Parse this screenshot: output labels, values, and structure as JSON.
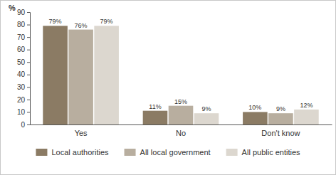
{
  "chart_data": {
    "type": "bar",
    "y_label": "%",
    "categories": [
      "Yes",
      "No",
      "Don't know"
    ],
    "series": [
      {
        "name": "Local authorities",
        "color": "#8b7b64",
        "values": [
          79,
          11,
          10
        ],
        "value_labels": [
          "79%",
          "11%",
          "10%"
        ]
      },
      {
        "name": "All local government",
        "color": "#b8ae9f",
        "values": [
          76,
          15,
          9
        ],
        "value_labels": [
          "76%",
          "15%",
          "9%"
        ]
      },
      {
        "name": "All public entities",
        "color": "#dcd7cf",
        "values": [
          79,
          9,
          12
        ],
        "value_labels": [
          "79%",
          "9%",
          "12%"
        ]
      }
    ],
    "ylim": [
      0,
      90
    ],
    "yticks": [
      0,
      10,
      20,
      30,
      40,
      50,
      60,
      70,
      80,
      90
    ],
    "grid": false,
    "legend": "bottom",
    "data_labels": true
  }
}
